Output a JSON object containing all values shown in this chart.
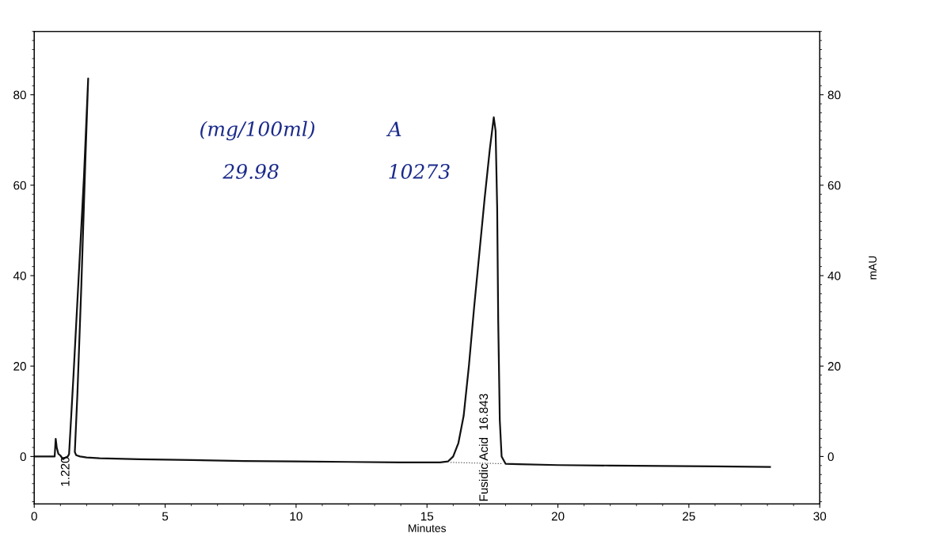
{
  "chart_data": {
    "type": "line",
    "xlabel": "Minutes",
    "y2label": "mAU",
    "xlim": [
      0,
      30
    ],
    "xticks": [
      0,
      5,
      10,
      15,
      20,
      25,
      30
    ],
    "ylim": [
      -10.5,
      94
    ],
    "yticks": [
      0,
      20,
      40,
      60,
      80
    ],
    "y2lim": [
      -10.5,
      94
    ],
    "y2ticks": [
      0,
      20,
      40,
      60,
      80
    ],
    "grid": false,
    "legend": false,
    "marker": "none",
    "series": [
      {
        "color": "#111111",
        "line_style": "solid",
        "x": [
          0,
          0.78,
          0.82,
          0.86,
          0.92,
          1.0,
          1.1,
          1.2,
          1.28,
          1.33,
          1.5,
          1.7,
          1.9,
          2.06,
          1.95,
          1.8,
          1.65,
          1.55,
          1.6,
          1.75,
          2.0,
          2.5,
          4,
          6,
          8,
          10,
          12,
          14,
          15,
          15.5,
          15.8,
          16.0,
          16.2,
          16.4,
          16.6,
          16.8,
          17.0,
          17.2,
          17.4,
          17.55,
          17.62,
          17.68,
          17.72,
          17.78,
          17.85,
          18.0,
          18.5,
          20,
          22,
          24,
          26,
          28.1
        ],
        "values": [
          0,
          0,
          3.9,
          2.0,
          0.6,
          0.2,
          -0.6,
          -0.2,
          0,
          0.5,
          18,
          40,
          62,
          83.6,
          65,
          38,
          14,
          1.0,
          0.3,
          0.0,
          -0.2,
          -0.4,
          -0.6,
          -0.8,
          -1.0,
          -1.1,
          -1.2,
          -1.3,
          -1.3,
          -1.3,
          -1.1,
          0,
          3,
          9,
          20,
          33,
          45,
          57,
          68,
          75,
          72,
          55,
          30,
          8,
          0,
          -1.6,
          -1.7,
          -1.9,
          -2.0,
          -2.1,
          -2.2,
          -2.3
        ]
      },
      {
        "color": "#555555",
        "line_style": "dotted",
        "x": [
          15.9,
          17.9
        ],
        "values": [
          -1.3,
          -1.6
        ]
      }
    ],
    "annotations": [
      {
        "text": "1.220",
        "x": 1.22,
        "y": 0
      },
      {
        "text": "Fusidic Acid  16.843",
        "x": 17.2,
        "y": -1.5
      },
      "(mg/100ml)",
      "29.98",
      "A",
      "10273"
    ]
  }
}
